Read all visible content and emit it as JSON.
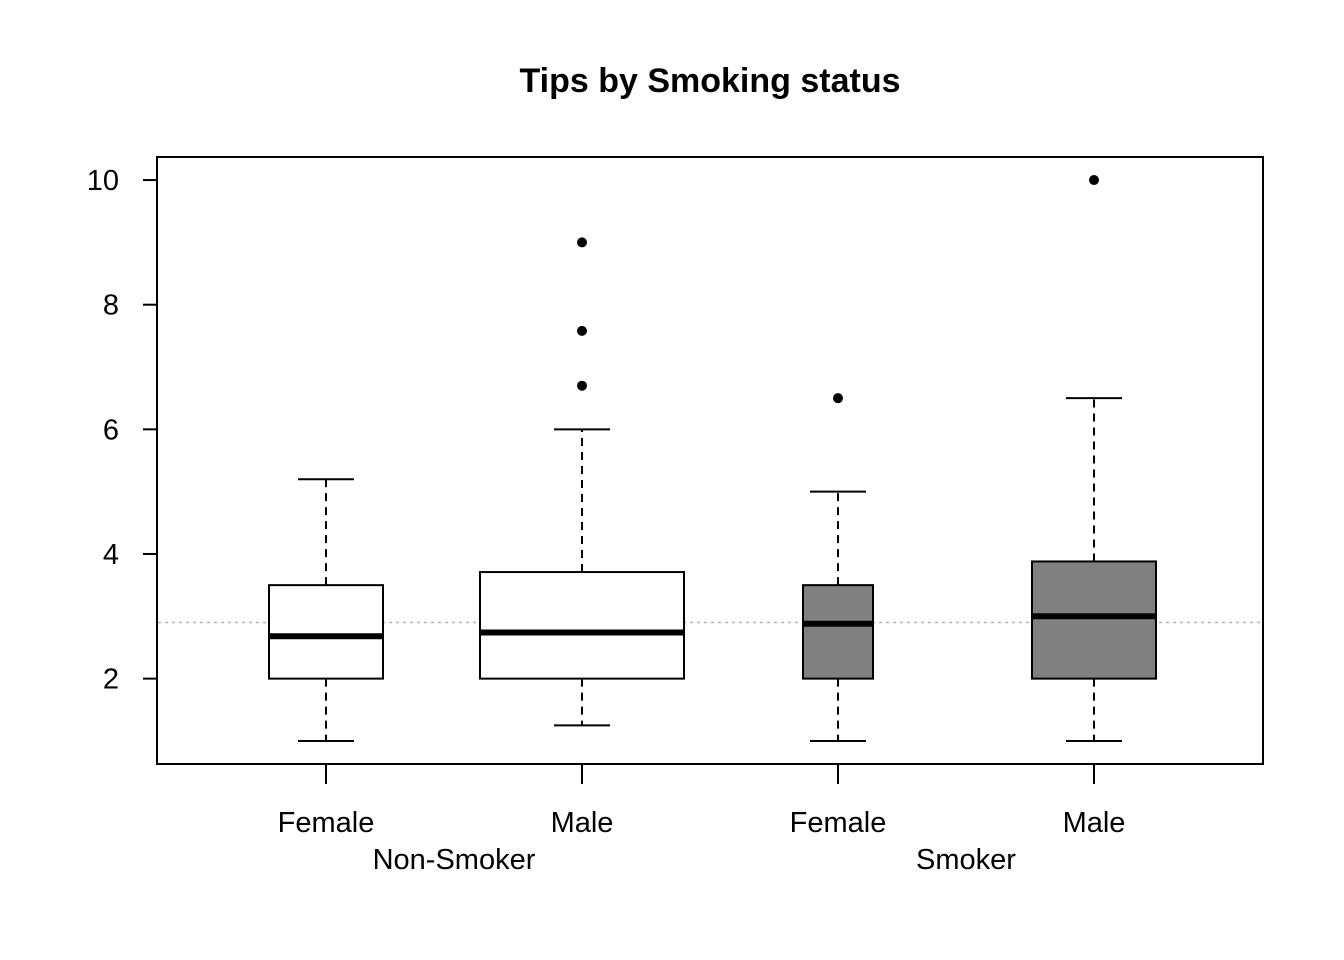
{
  "chart_data": {
    "type": "boxplot",
    "title": "Tips by Smoking status",
    "xlabel": "",
    "ylabel": "",
    "ylim": [
      0.63,
      10.37
    ],
    "y_ticks": [
      2,
      4,
      6,
      8,
      10
    ],
    "reference_line": 2.9,
    "grid": false,
    "boxes": [
      {
        "label": "Female",
        "group": "Non-Smoker",
        "fill": "#ffffff",
        "min": 1.0,
        "q1": 2.0,
        "median": 2.68,
        "q3": 3.5,
        "max": 5.2,
        "outliers": []
      },
      {
        "label": "Male",
        "group": "Non-Smoker",
        "fill": "#ffffff",
        "min": 1.25,
        "q1": 2.0,
        "median": 2.74,
        "q3": 3.71,
        "max": 6.0,
        "outliers": [
          6.7,
          7.58,
          9.0
        ]
      },
      {
        "label": "Female",
        "group": "Smoker",
        "fill": "#808080",
        "min": 1.0,
        "q1": 2.0,
        "median": 2.88,
        "q3": 3.5,
        "max": 5.0,
        "outliers": [
          6.5
        ]
      },
      {
        "label": "Male",
        "group": "Smoker",
        "fill": "#808080",
        "min": 1.0,
        "q1": 2.0,
        "median": 3.0,
        "q3": 3.88,
        "max": 6.5,
        "outliers": [
          10.0
        ]
      }
    ],
    "groups": [
      "Non-Smoker",
      "Smoker"
    ]
  }
}
